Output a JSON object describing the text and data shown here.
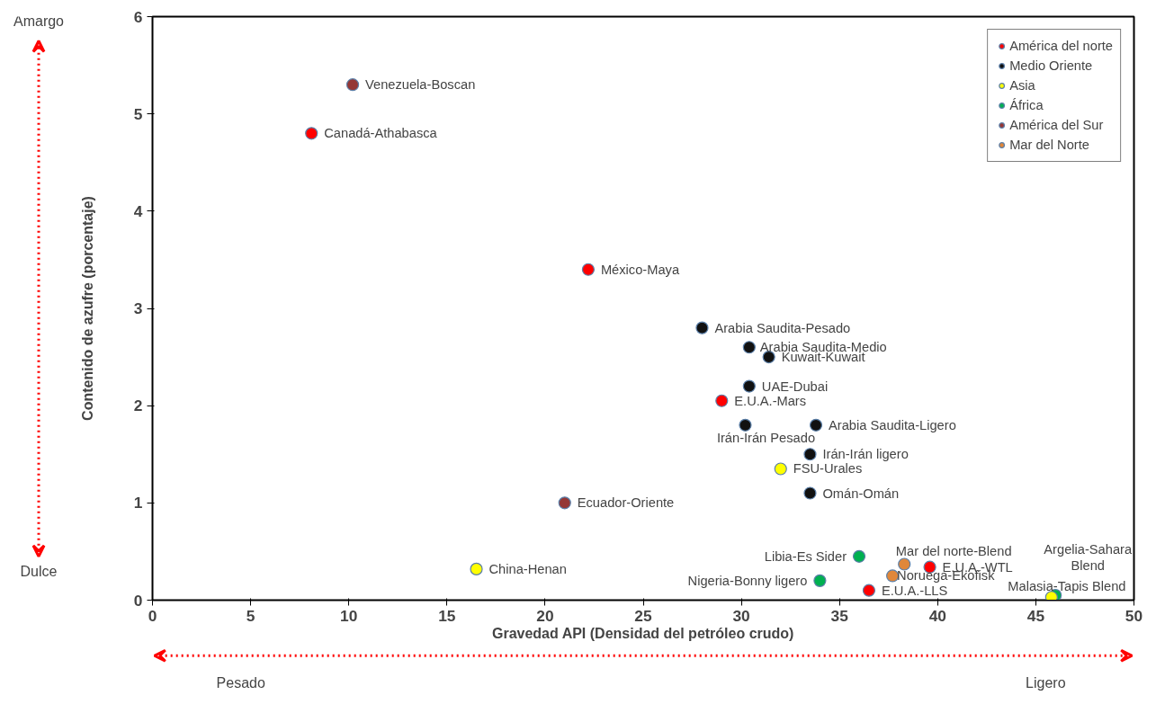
{
  "chart_data": {
    "type": "scatter",
    "xlabel": "Gravedad API (Densidad del petróleo crudo)",
    "ylabel": "Contenido de azufre (porcentaje)",
    "xlim": [
      0,
      50
    ],
    "ylim": [
      0,
      6
    ],
    "xticks": [
      0,
      5,
      10,
      15,
      20,
      25,
      30,
      35,
      40,
      45,
      50
    ],
    "yticks": [
      0,
      1,
      2,
      3,
      4,
      5,
      6
    ],
    "grid": false,
    "legend": "top right",
    "marker": "circle",
    "series": [
      {
        "name": "América del norte",
        "color": "#ff0000",
        "x": [
          8.1,
          22.2,
          29.0,
          39.6,
          36.5
        ],
        "values": [
          4.8,
          3.4,
          2.05,
          0.34,
          0.1
        ]
      },
      {
        "name": "Medio Oriente",
        "color": "#111111",
        "x": [
          28.0,
          30.4,
          31.4,
          30.4,
          30.2,
          33.8,
          33.5,
          33.5
        ],
        "values": [
          2.8,
          2.6,
          2.5,
          2.2,
          1.8,
          1.8,
          1.5,
          1.1
        ]
      },
      {
        "name": "Asia",
        "color": "#ffff00",
        "x": [
          32.0,
          16.5,
          45.8
        ],
        "values": [
          1.35,
          0.32,
          0.03
        ]
      },
      {
        "name": "África",
        "color": "#00b050",
        "x": [
          36.0,
          34.0,
          46.0
        ],
        "values": [
          0.45,
          0.2,
          0.05
        ]
      },
      {
        "name": "América del Sur",
        "color": "#953735",
        "x": [
          10.2,
          21.0
        ],
        "values": [
          5.3,
          1.0
        ]
      },
      {
        "name": "Mar del Norte",
        "color": "#e0873a",
        "x": [
          38.3,
          37.7
        ],
        "values": [
          0.37,
          0.25
        ]
      }
    ],
    "annotations": [
      "Amargo",
      "Dulce",
      "Pesado",
      "Ligero",
      {
        "text": "Canadá-Athabasca",
        "x": 8.1,
        "y": 4.8
      },
      {
        "text": "México-Maya",
        "x": 22.2,
        "y": 3.4
      },
      {
        "text": "E.U.A.-Mars",
        "x": 29.0,
        "y": 2.05
      },
      {
        "text": "E.U.A.-WTL",
        "x": 39.6,
        "y": 0.34
      },
      {
        "text": "E.U.A.-LLS",
        "x": 36.5,
        "y": 0.1
      },
      {
        "text": "Arabia Saudita-Pesado",
        "x": 28.0,
        "y": 2.8
      },
      {
        "text": "Arabia Saudita-Medio",
        "x": 30.4,
        "y": 2.6
      },
      {
        "text": "Kuwait-Kuwait",
        "x": 31.4,
        "y": 2.5
      },
      {
        "text": "UAE-Dubai",
        "x": 30.4,
        "y": 2.2
      },
      {
        "text": "Irán-Irán Pesado",
        "x": 30.2,
        "y": 1.8
      },
      {
        "text": "Arabia Saudita-Ligero",
        "x": 33.8,
        "y": 1.8
      },
      {
        "text": "Irán-Irán ligero",
        "x": 33.5,
        "y": 1.5
      },
      {
        "text": "Omán-Omán",
        "x": 33.5,
        "y": 1.1
      },
      {
        "text": "FSU-Urales",
        "x": 32.0,
        "y": 1.35
      },
      {
        "text": "China-Henan",
        "x": 16.5,
        "y": 0.32
      },
      {
        "text": "Malasia-Tapis Blend",
        "x": 45.8,
        "y": 0.03
      },
      {
        "text": "Libia-Es Sider",
        "x": 36.0,
        "y": 0.45
      },
      {
        "text": "Nigeria-Bonny ligero",
        "x": 34.0,
        "y": 0.2
      },
      {
        "text": "Argelia-Sahara Blend",
        "x": 46.0,
        "y": 0.05
      },
      {
        "text": "Venezuela-Boscan",
        "x": 10.2,
        "y": 5.3
      },
      {
        "text": "Ecuador-Oriente",
        "x": 21.0,
        "y": 1.0
      },
      {
        "text": "Mar del norte-Blend",
        "x": 38.3,
        "y": 0.37
      },
      {
        "text": "Noruega-Ekofisk",
        "x": 37.7,
        "y": 0.25
      }
    ]
  }
}
